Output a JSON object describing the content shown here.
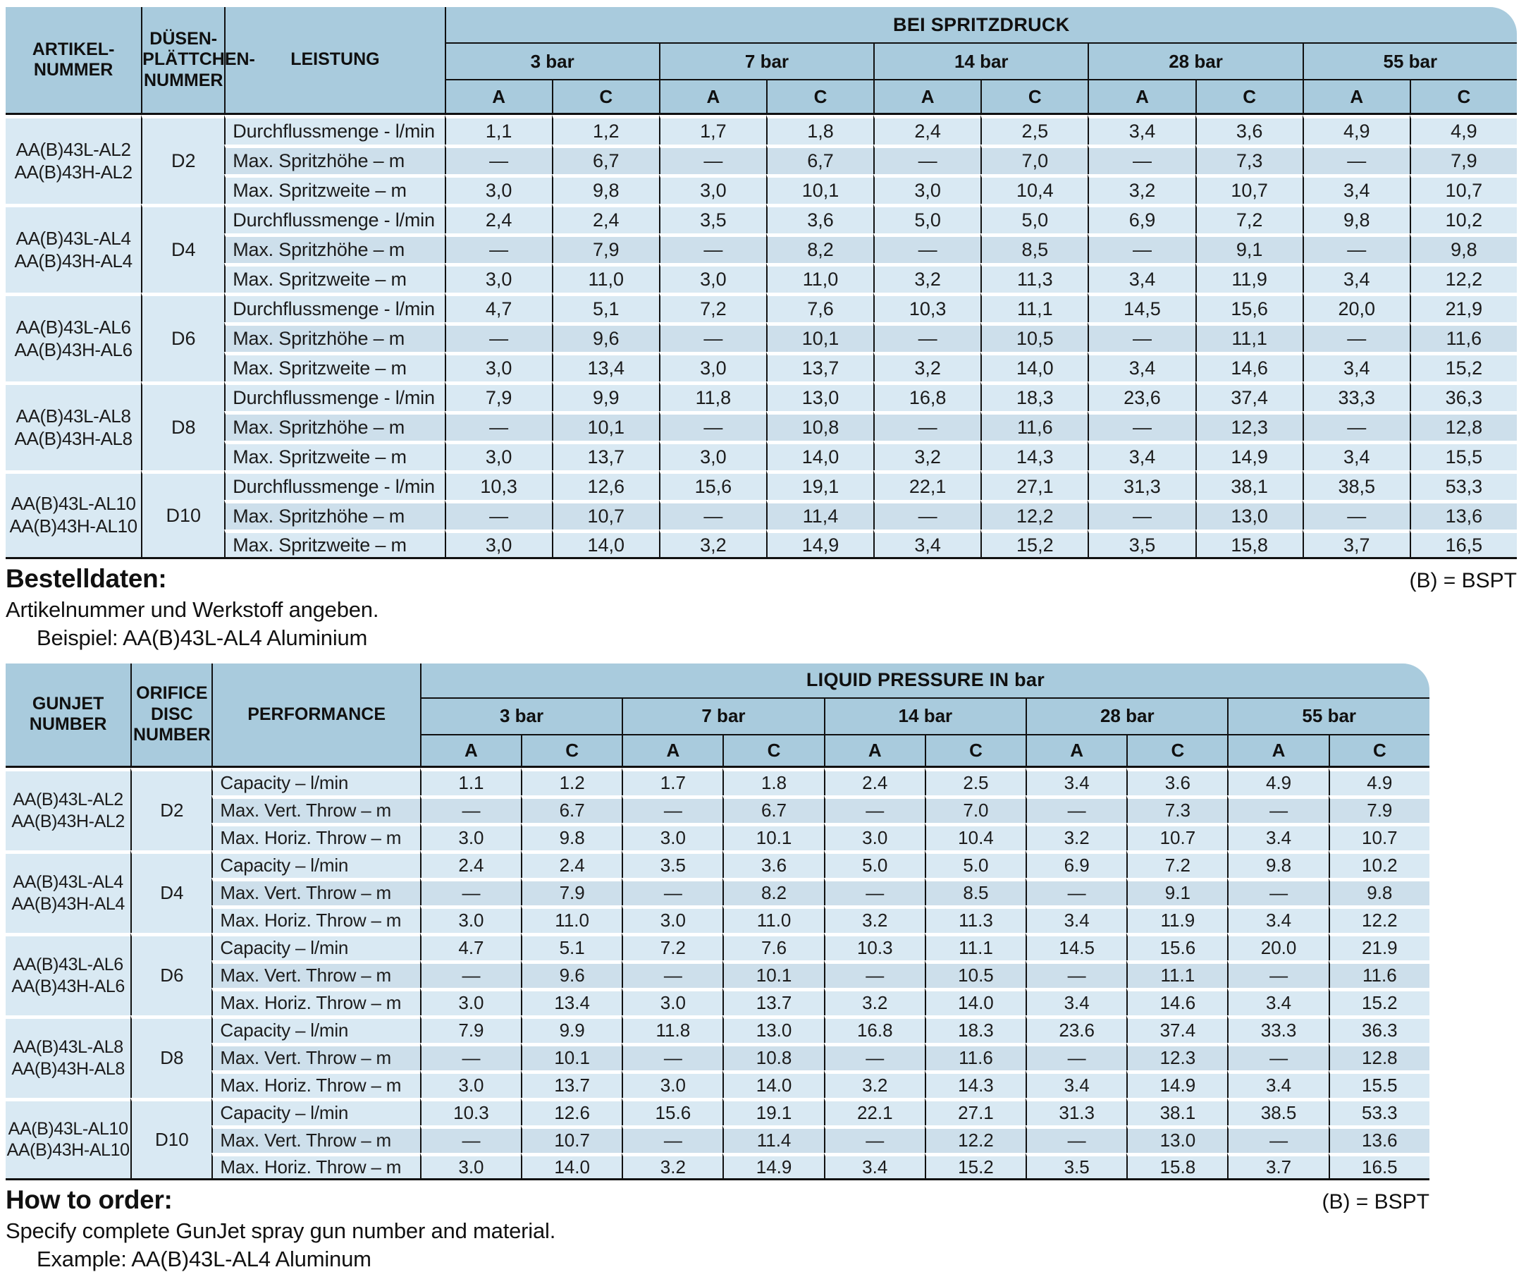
{
  "colors": {
    "header_blue": "#a9cbdd",
    "row_light": "#d9e9f3",
    "row_mid": "#cddfeb",
    "line_black": "#111111",
    "page_bg": "#ffffff"
  },
  "tables": [
    {
      "dom": "spec-table-de",
      "header": {
        "col1": "ARTIKEL-\nNUMMER",
        "col2": "DÜSEN-\nPLÄTTCHEN-\nNUMMER",
        "col3": "LEISTUNG",
        "span": "BEI SPRITZDRUCK",
        "pressures": [
          "3 bar",
          "7 bar",
          "14 bar",
          "28 bar",
          "55 bar"
        ],
        "subcols": [
          "A",
          "C"
        ]
      },
      "row_labels": [
        "Durchflussmenge - l/min",
        "Max. Spritzhöhe – m",
        "Max. Spritzweite – m"
      ],
      "groups": [
        {
          "article": "AA(B)43L-AL2\nAA(B)43H-AL2",
          "disc": "D2",
          "rows": [
            [
              "1,1",
              "1,2",
              "1,7",
              "1,8",
              "2,4",
              "2,5",
              "3,4",
              "3,6",
              "4,9",
              "4,9"
            ],
            [
              "—",
              "6,7",
              "—",
              "6,7",
              "—",
              "7,0",
              "—",
              "7,3",
              "—",
              "7,9"
            ],
            [
              "3,0",
              "9,8",
              "3,0",
              "10,1",
              "3,0",
              "10,4",
              "3,2",
              "10,7",
              "3,4",
              "10,7"
            ]
          ]
        },
        {
          "article": "AA(B)43L-AL4\nAA(B)43H-AL4",
          "disc": "D4",
          "rows": [
            [
              "2,4",
              "2,4",
              "3,5",
              "3,6",
              "5,0",
              "5,0",
              "6,9",
              "7,2",
              "9,8",
              "10,2"
            ],
            [
              "—",
              "7,9",
              "—",
              "8,2",
              "—",
              "8,5",
              "—",
              "9,1",
              "—",
              "9,8"
            ],
            [
              "3,0",
              "11,0",
              "3,0",
              "11,0",
              "3,2",
              "11,3",
              "3,4",
              "11,9",
              "3,4",
              "12,2"
            ]
          ]
        },
        {
          "article": "AA(B)43L-AL6\nAA(B)43H-AL6",
          "disc": "D6",
          "rows": [
            [
              "4,7",
              "5,1",
              "7,2",
              "7,6",
              "10,3",
              "11,1",
              "14,5",
              "15,6",
              "20,0",
              "21,9"
            ],
            [
              "—",
              "9,6",
              "—",
              "10,1",
              "—",
              "10,5",
              "—",
              "11,1",
              "—",
              "11,6"
            ],
            [
              "3,0",
              "13,4",
              "3,0",
              "13,7",
              "3,2",
              "14,0",
              "3,4",
              "14,6",
              "3,4",
              "15,2"
            ]
          ]
        },
        {
          "article": "AA(B)43L-AL8\nAA(B)43H-AL8",
          "disc": "D8",
          "rows": [
            [
              "7,9",
              "9,9",
              "11,8",
              "13,0",
              "16,8",
              "18,3",
              "23,6",
              "37,4",
              "33,3",
              "36,3"
            ],
            [
              "—",
              "10,1",
              "—",
              "10,8",
              "—",
              "11,6",
              "—",
              "12,3",
              "—",
              "12,8"
            ],
            [
              "3,0",
              "13,7",
              "3,0",
              "14,0",
              "3,2",
              "14,3",
              "3,4",
              "14,9",
              "3,4",
              "15,5"
            ]
          ]
        },
        {
          "article": "AA(B)43L-AL10\nAA(B)43H-AL10",
          "disc": "D10",
          "rows": [
            [
              "10,3",
              "12,6",
              "15,6",
              "19,1",
              "22,1",
              "27,1",
              "31,3",
              "38,1",
              "38,5",
              "53,3"
            ],
            [
              "—",
              "10,7",
              "—",
              "11,4",
              "—",
              "12,2",
              "—",
              "13,0",
              "—",
              "13,6"
            ],
            [
              "3,0",
              "14,0",
              "3,2",
              "14,9",
              "3,4",
              "15,2",
              "3,5",
              "15,8",
              "3,7",
              "16,5"
            ]
          ]
        }
      ],
      "footer": {
        "heading": "Bestelldaten:",
        "note": "(B) = BSPT",
        "line1": "Artikelnummer und Werkstoff angeben.",
        "line2": "Beispiel: AA(B)43L-AL4 Aluminium"
      }
    },
    {
      "dom": "spec-table-en",
      "header": {
        "col1": "GUNJET\nNUMBER",
        "col2": "ORIFICE\nDISC\nNUMBER",
        "col3": "PERFORMANCE",
        "span": "LIQUID PRESSURE IN bar",
        "pressures": [
          "3 bar",
          "7 bar",
          "14 bar",
          "28 bar",
          "55 bar"
        ],
        "subcols": [
          "A",
          "C"
        ]
      },
      "row_labels": [
        "Capacity – l/min",
        "Max. Vert. Throw – m",
        "Max. Horiz. Throw – m"
      ],
      "groups": [
        {
          "article": "AA(B)43L-AL2\nAA(B)43H-AL2",
          "disc": "D2",
          "rows": [
            [
              "1.1",
              "1.2",
              "1.7",
              "1.8",
              "2.4",
              "2.5",
              "3.4",
              "3.6",
              "4.9",
              "4.9"
            ],
            [
              "—",
              "6.7",
              "—",
              "6.7",
              "—",
              "7.0",
              "—",
              "7.3",
              "—",
              "7.9"
            ],
            [
              "3.0",
              "9.8",
              "3.0",
              "10.1",
              "3.0",
              "10.4",
              "3.2",
              "10.7",
              "3.4",
              "10.7"
            ]
          ]
        },
        {
          "article": "AA(B)43L-AL4\nAA(B)43H-AL4",
          "disc": "D4",
          "rows": [
            [
              "2.4",
              "2.4",
              "3.5",
              "3.6",
              "5.0",
              "5.0",
              "6.9",
              "7.2",
              "9.8",
              "10.2"
            ],
            [
              "—",
              "7.9",
              "—",
              "8.2",
              "—",
              "8.5",
              "—",
              "9.1",
              "—",
              "9.8"
            ],
            [
              "3.0",
              "11.0",
              "3.0",
              "11.0",
              "3.2",
              "11.3",
              "3.4",
              "11.9",
              "3.4",
              "12.2"
            ]
          ]
        },
        {
          "article": "AA(B)43L-AL6\nAA(B)43H-AL6",
          "disc": "D6",
          "rows": [
            [
              "4.7",
              "5.1",
              "7.2",
              "7.6",
              "10.3",
              "11.1",
              "14.5",
              "15.6",
              "20.0",
              "21.9"
            ],
            [
              "—",
              "9.6",
              "—",
              "10.1",
              "—",
              "10.5",
              "—",
              "11.1",
              "—",
              "11.6"
            ],
            [
              "3.0",
              "13.4",
              "3.0",
              "13.7",
              "3.2",
              "14.0",
              "3.4",
              "14.6",
              "3.4",
              "15.2"
            ]
          ]
        },
        {
          "article": "AA(B)43L-AL8\nAA(B)43H-AL8",
          "disc": "D8",
          "rows": [
            [
              "7.9",
              "9.9",
              "11.8",
              "13.0",
              "16.8",
              "18.3",
              "23.6",
              "37.4",
              "33.3",
              "36.3"
            ],
            [
              "—",
              "10.1",
              "—",
              "10.8",
              "—",
              "11.6",
              "—",
              "12.3",
              "—",
              "12.8"
            ],
            [
              "3.0",
              "13.7",
              "3.0",
              "14.0",
              "3.2",
              "14.3",
              "3.4",
              "14.9",
              "3.4",
              "15.5"
            ]
          ]
        },
        {
          "article": "AA(B)43L-AL10\nAA(B)43H-AL10",
          "disc": "D10",
          "rows": [
            [
              "10.3",
              "12.6",
              "15.6",
              "19.1",
              "22.1",
              "27.1",
              "31.3",
              "38.1",
              "38.5",
              "53.3"
            ],
            [
              "—",
              "10.7",
              "—",
              "11.4",
              "—",
              "12.2",
              "—",
              "13.0",
              "—",
              "13.6"
            ],
            [
              "3.0",
              "14.0",
              "3.2",
              "14.9",
              "3.4",
              "15.2",
              "3.5",
              "15.8",
              "3.7",
              "16.5"
            ]
          ]
        }
      ],
      "footer": {
        "heading": "How to order:",
        "note": "(B) = BSPT",
        "line1": "Specify complete GunJet spray gun number and material.",
        "line2": "Example: AA(B)43L-AL4 Aluminum"
      }
    }
  ]
}
